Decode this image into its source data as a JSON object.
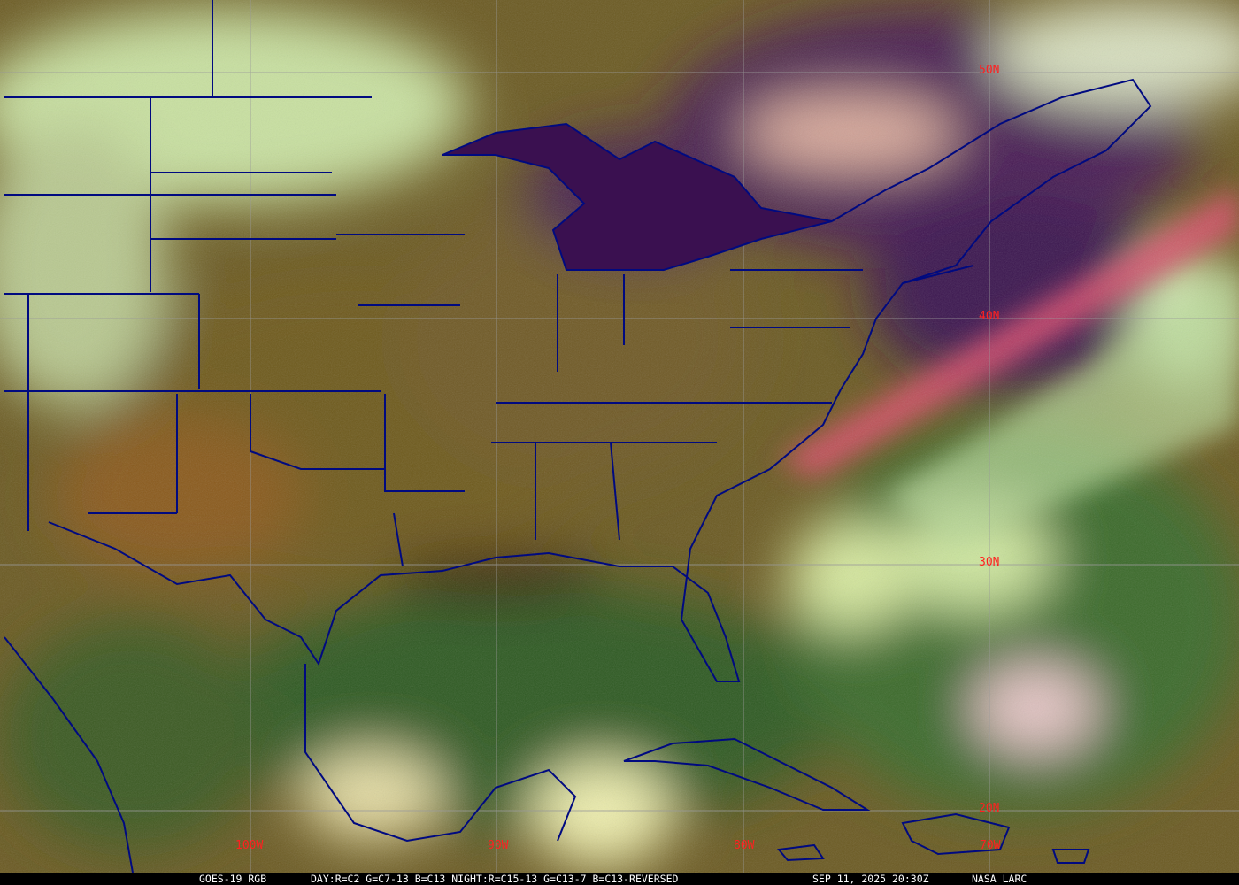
{
  "map": {
    "type": "satellite-rgb-composite",
    "latitude_labels": [
      "50N",
      "40N",
      "30N",
      "20N"
    ],
    "longitude_labels": [
      "100W",
      "90W",
      "80W",
      "70W"
    ],
    "colors": {
      "grid": "#9a9a9a",
      "borders": "#000a80",
      "labels": "#ff2020",
      "caption_bg": "#000000",
      "caption_text": "#ffffff"
    }
  },
  "caption": {
    "satellite": "GOES-19 RGB",
    "recipe": "DAY:R=C2 G=C7-13 B=C13 NIGHT:R=C15-13 G=C13-7 B=C13-REVERSED",
    "timestamp": "SEP 11, 2025 20:30Z",
    "source": "NASA LARC"
  }
}
